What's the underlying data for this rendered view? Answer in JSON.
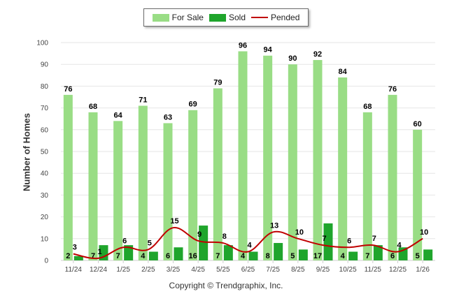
{
  "colors": {
    "for_sale": "#99dd85",
    "sold": "#1fa52c",
    "pended": "#c00000",
    "grid": "#e6e6e6"
  },
  "legend": {
    "for_sale": "For Sale",
    "sold": "Sold",
    "pended": "Pended"
  },
  "footer": "Copyright © Trendgraphix, Inc.",
  "chart_data": {
    "type": "bar",
    "title": "",
    "xlabel": "",
    "ylabel": "Number of Homes",
    "ylim": [
      0,
      100
    ],
    "yticks": [
      0,
      10,
      20,
      30,
      40,
      50,
      60,
      70,
      80,
      90,
      100
    ],
    "grid": true,
    "legend_position": "top-center",
    "categories": [
      "11/24",
      "12/24",
      "1/25",
      "2/25",
      "3/25",
      "4/25",
      "5/25",
      "6/25",
      "7/25",
      "8/25",
      "9/25",
      "10/25",
      "11/25",
      "12/25",
      "1/26"
    ],
    "series": [
      {
        "name": "For Sale",
        "type": "bar",
        "values": [
          76,
          68,
          64,
          71,
          63,
          69,
          79,
          96,
          94,
          90,
          92,
          84,
          68,
          76,
          60
        ]
      },
      {
        "name": "Sold",
        "type": "bar",
        "values": [
          2,
          7,
          7,
          4,
          6,
          16,
          7,
          4,
          8,
          5,
          17,
          4,
          7,
          6,
          5
        ]
      },
      {
        "name": "Pended",
        "type": "line",
        "values": [
          3,
          1,
          6,
          5,
          15,
          9,
          8,
          4,
          13,
          10,
          7,
          6,
          7,
          4,
          10
        ]
      }
    ]
  }
}
